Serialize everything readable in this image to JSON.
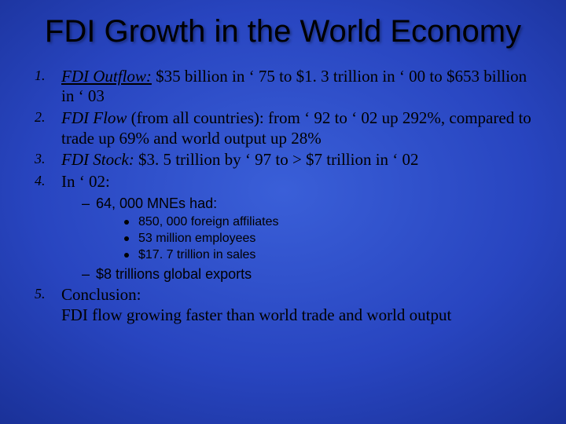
{
  "title_fontsize": 40,
  "body_fontsize": 21,
  "sub1_fontsize": 18,
  "sub2_fontsize": 16,
  "background_gradient": [
    "#3a5fd8",
    "#2845c0",
    "#152a8a",
    "#0a1660"
  ],
  "text_color": "#000000",
  "font_family_title": "Arial",
  "font_family_body": "Times New Roman",
  "title": "FDI Growth in the World Economy",
  "items": [
    {
      "num": "1.",
      "lead_italic": "FDI Outflow:",
      "lead_underline": true,
      "rest": " $35 billion in ‘ 75 to $1. 3 trillion in ‘ 00 to $653 billion in ‘ 03"
    },
    {
      "num": "2.",
      "lead_italic": "FDI Flow",
      "lead_underline": false,
      "rest": " (from all countries): from ‘ 92 to ‘ 02 up 292%, compared to  trade up 69% and world output up 28%"
    },
    {
      "num": "3.",
      "lead_italic": "FDI Stock:",
      "lead_underline": false,
      "rest": " $3. 5 trillion by ‘ 97 to > $7 trillion in ‘ 02"
    },
    {
      "num": "4.",
      "lead_italic": "",
      "lead_underline": false,
      "rest": "In ‘ 02:"
    }
  ],
  "sub1a": "64, 000 MNEs had:",
  "sub2": [
    "850, 000 foreign affiliates",
    "53 million employees",
    "$17. 7 trillion in sales"
  ],
  "sub1b": "$8 trillions global exports",
  "item5": {
    "num": "5.",
    "line1": "Conclusion:",
    "line2": "FDI flow growing faster than world trade and world output"
  }
}
